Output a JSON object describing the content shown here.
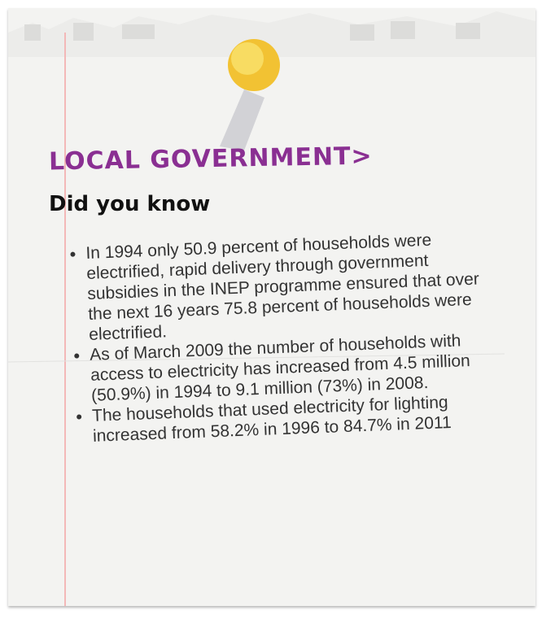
{
  "header": {
    "title": "LOCAL GOVERNMENT>",
    "subtitle": "Did you know"
  },
  "list": {
    "items": [
      "In 1994 only 50.9 percent of households were electrified, rapid delivery through government subsidies in the INEP programme ensured that over the next 16 years 75.8 percent of households were electrified.",
      "As of March 2009 the number of households with access to electricity has increased from 4.5 million (50.9%) in 1994 to 9.1 million (73%) in 2008.",
      "The households that used electricity for lighting increased from 58.2% in 1996 to 84.7% in 2011"
    ]
  }
}
